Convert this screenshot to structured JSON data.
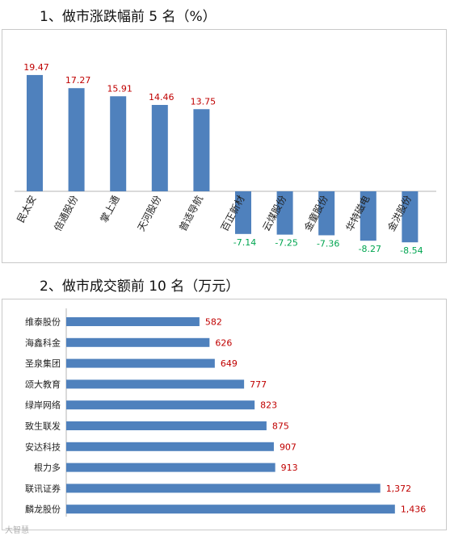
{
  "heading1": "1、做市涨跌幅前 5 名（%）",
  "heading2": "2、做市成交额前 10 名（万元）",
  "watermark": "大智慧",
  "colors": {
    "bar": "#4f81bd",
    "pos_label": "#c00000",
    "neg_label": "#00a550"
  },
  "chart_data": [
    {
      "type": "bar",
      "orientation": "vertical",
      "title": "做市涨跌幅前 5 名（%）",
      "categories": [
        "民太安",
        "倍通股份",
        "掌上通",
        "天河股份",
        "普适导航",
        "百正新材",
        "云煤股份",
        "金童股份",
        "华特磁电",
        "金洪股份"
      ],
      "values": [
        19.47,
        17.27,
        15.91,
        14.46,
        13.75,
        -7.14,
        -7.25,
        -7.36,
        -8.27,
        -8.54
      ],
      "labels": [
        "19.47",
        "17.27",
        "15.91",
        "14.46",
        "13.75",
        "-7.14",
        "-7.25",
        "-7.36",
        "-8.27",
        "-8.54"
      ],
      "ylim": [
        -9,
        20
      ],
      "grid": false,
      "legend": false
    },
    {
      "type": "bar",
      "orientation": "horizontal",
      "title": "做市成交额前 10 名（万元）",
      "categories": [
        "维泰股份",
        "海鑫科金",
        "圣泉集团",
        "颂大教育",
        "绿岸网络",
        "致生联发",
        "安达科技",
        "根力多",
        "联讯证券",
        "麟龙股份"
      ],
      "values": [
        582,
        626,
        649,
        777,
        823,
        875,
        907,
        913,
        1372,
        1436
      ],
      "labels": [
        "582",
        "626",
        "649",
        "777",
        "823",
        "875",
        "907",
        "913",
        "1,372",
        "1,436"
      ],
      "xlim": [
        0,
        1500
      ],
      "grid": false,
      "legend": false
    }
  ]
}
